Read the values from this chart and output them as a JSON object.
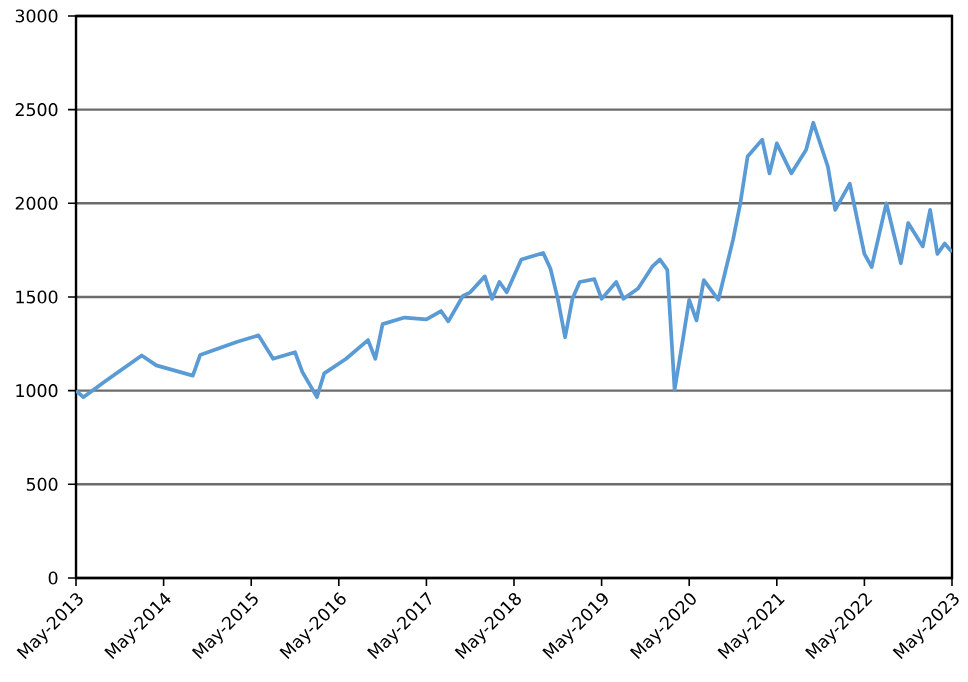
{
  "chart_data": {
    "type": "line",
    "color": "#5b9bd5",
    "grid": "y",
    "x": [
      "2013-05",
      "2013-06",
      "2013-09",
      "2014-02",
      "2014-04",
      "2014-09",
      "2014-10",
      "2015-03",
      "2015-06",
      "2015-08",
      "2015-11",
      "2015-12",
      "2016-02",
      "2016-03",
      "2016-06",
      "2016-09",
      "2016-10",
      "2016-11",
      "2017-02",
      "2017-05",
      "2017-07",
      "2017-08",
      "2017-10",
      "2017-11",
      "2018-01",
      "2018-02",
      "2018-03",
      "2018-04",
      "2018-06",
      "2018-09",
      "2018-10",
      "2018-11",
      "2018-12",
      "2019-01",
      "2019-02",
      "2019-04",
      "2019-05",
      "2019-07",
      "2019-08",
      "2019-10",
      "2019-12",
      "2020-01",
      "2020-02",
      "2020-03",
      "2020-04",
      "2020-05",
      "2020-06",
      "2020-07",
      "2020-09",
      "2020-10",
      "2020-11",
      "2020-12",
      "2021-01",
      "2021-03",
      "2021-04",
      "2021-05",
      "2021-07",
      "2021-09",
      "2021-10",
      "2021-12",
      "2022-01",
      "2022-03",
      "2022-05",
      "2022-06",
      "2022-08",
      "2022-10",
      "2022-11",
      "2023-01",
      "2023-02",
      "2023-03",
      "2023-04",
      "2023-05"
    ],
    "values": [
      1000,
      965,
      1050,
      1188,
      1135,
      1080,
      1190,
      1260,
      1295,
      1170,
      1205,
      1100,
      965,
      1092,
      1170,
      1270,
      1170,
      1355,
      1390,
      1380,
      1425,
      1370,
      1505,
      1525,
      1610,
      1490,
      1580,
      1525,
      1700,
      1735,
      1650,
      1490,
      1285,
      1490,
      1580,
      1595,
      1490,
      1580,
      1490,
      1545,
      1665,
      1700,
      1645,
      1005,
      1240,
      1485,
      1375,
      1590,
      1485,
      1645,
      1805,
      2000,
      2250,
      2340,
      2160,
      2320,
      2160,
      2285,
      2430,
      2195,
      1965,
      2105,
      1730,
      1660,
      2000,
      1680,
      1895,
      1770,
      1965,
      1730,
      1785,
      1740
    ],
    "xlim": [
      "2013-05",
      "2023-05"
    ],
    "xticks": [
      {
        "value": "2013-05",
        "label": "May-2013"
      },
      {
        "value": "2014-05",
        "label": "May-2014"
      },
      {
        "value": "2015-05",
        "label": "May-2015"
      },
      {
        "value": "2016-05",
        "label": "May-2016"
      },
      {
        "value": "2017-05",
        "label": "May-2017"
      },
      {
        "value": "2018-05",
        "label": "May-2018"
      },
      {
        "value": "2019-05",
        "label": "May-2019"
      },
      {
        "value": "2020-05",
        "label": "May-2020"
      },
      {
        "value": "2021-05",
        "label": "May-2021"
      },
      {
        "value": "2022-05",
        "label": "May-2022"
      },
      {
        "value": "2023-05",
        "label": "May-2023"
      }
    ],
    "ylim": [
      0,
      3000
    ],
    "yticks": [
      0,
      500,
      1000,
      1500,
      2000,
      2500,
      3000
    ]
  }
}
